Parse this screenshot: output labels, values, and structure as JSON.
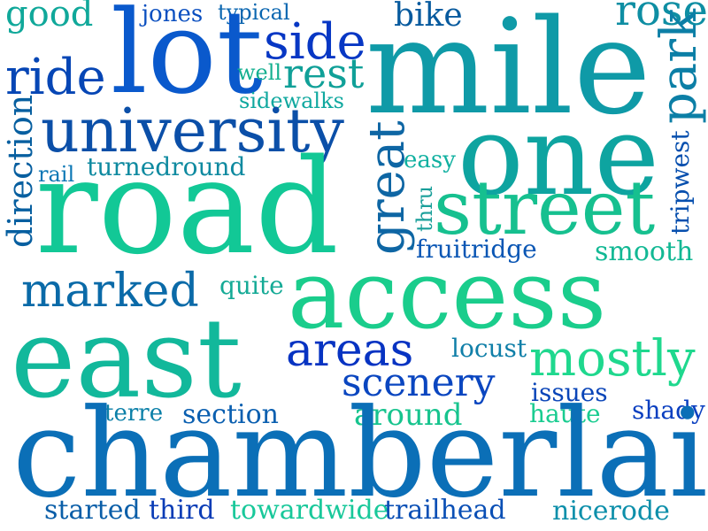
{
  "words": [
    {
      "text": "good",
      "color": "#10a89a"
    },
    {
      "text": "jones",
      "color": "#0a4fc0"
    },
    {
      "text": "typical",
      "color": "#0a66b0"
    },
    {
      "text": "lot",
      "color": "#0a59cc"
    },
    {
      "text": "side",
      "color": "#0737c4"
    },
    {
      "text": "bike",
      "color": "#075a9e"
    },
    {
      "text": "mile",
      "color": "#0f9aa7"
    },
    {
      "text": "rose",
      "color": "#0e8ea3"
    },
    {
      "text": "ride",
      "color": "#0646b5"
    },
    {
      "text": "well",
      "color": "#15b090"
    },
    {
      "text": "rest",
      "color": "#10a098"
    },
    {
      "text": "park",
      "color": "#0c7fa6"
    },
    {
      "text": "sidewalks",
      "color": "#10a89f"
    },
    {
      "text": "university",
      "color": "#0b4fa8"
    },
    {
      "text": "direction",
      "color": "#075fa0"
    },
    {
      "text": "one",
      "color": "#0ea4a0"
    },
    {
      "text": "great",
      "color": "#0e66a4"
    },
    {
      "text": "tripwest",
      "color": "#074fae"
    },
    {
      "text": "rail",
      "color": "#0b77b5"
    },
    {
      "text": "turnedround",
      "color": "#0f8aa0"
    },
    {
      "text": "easy",
      "color": "#10b0a0"
    },
    {
      "text": "road",
      "color": "#12c896"
    },
    {
      "text": "thru",
      "color": "#1a9f9a"
    },
    {
      "text": "street",
      "color": "#16c08f"
    },
    {
      "text": "fruitridge",
      "color": "#0a56b4"
    },
    {
      "text": "smooth",
      "color": "#12b894"
    },
    {
      "text": "marked",
      "color": "#0a6aa8"
    },
    {
      "text": "quite",
      "color": "#15aa96"
    },
    {
      "text": "access",
      "color": "#1acd8c"
    },
    {
      "text": "east",
      "color": "#12b89b"
    },
    {
      "text": "areas",
      "color": "#0733c2"
    },
    {
      "text": "locust",
      "color": "#107fa8"
    },
    {
      "text": "mostly",
      "color": "#1fd88e"
    },
    {
      "text": "scenery",
      "color": "#0a46c0"
    },
    {
      "text": "issues",
      "color": "#0a45b8"
    },
    {
      "text": "terre",
      "color": "#0c80a8"
    },
    {
      "text": "section",
      "color": "#0a5fb0"
    },
    {
      "text": "around",
      "color": "#17c48e"
    },
    {
      "text": "haute",
      "color": "#19cc90"
    },
    {
      "text": "shady",
      "color": "#0a3fc0"
    },
    {
      "text": "chamberlain",
      "color": "#0b6fb7"
    },
    {
      "text": "started",
      "color": "#0a5ea8"
    },
    {
      "text": "third",
      "color": "#0a3cb6"
    },
    {
      "text": "towardwide",
      "color": "#18c89a"
    },
    {
      "text": "trailhead",
      "color": "#0a4fb5"
    },
    {
      "text": "nicerode",
      "color": "#0c8faa"
    }
  ]
}
